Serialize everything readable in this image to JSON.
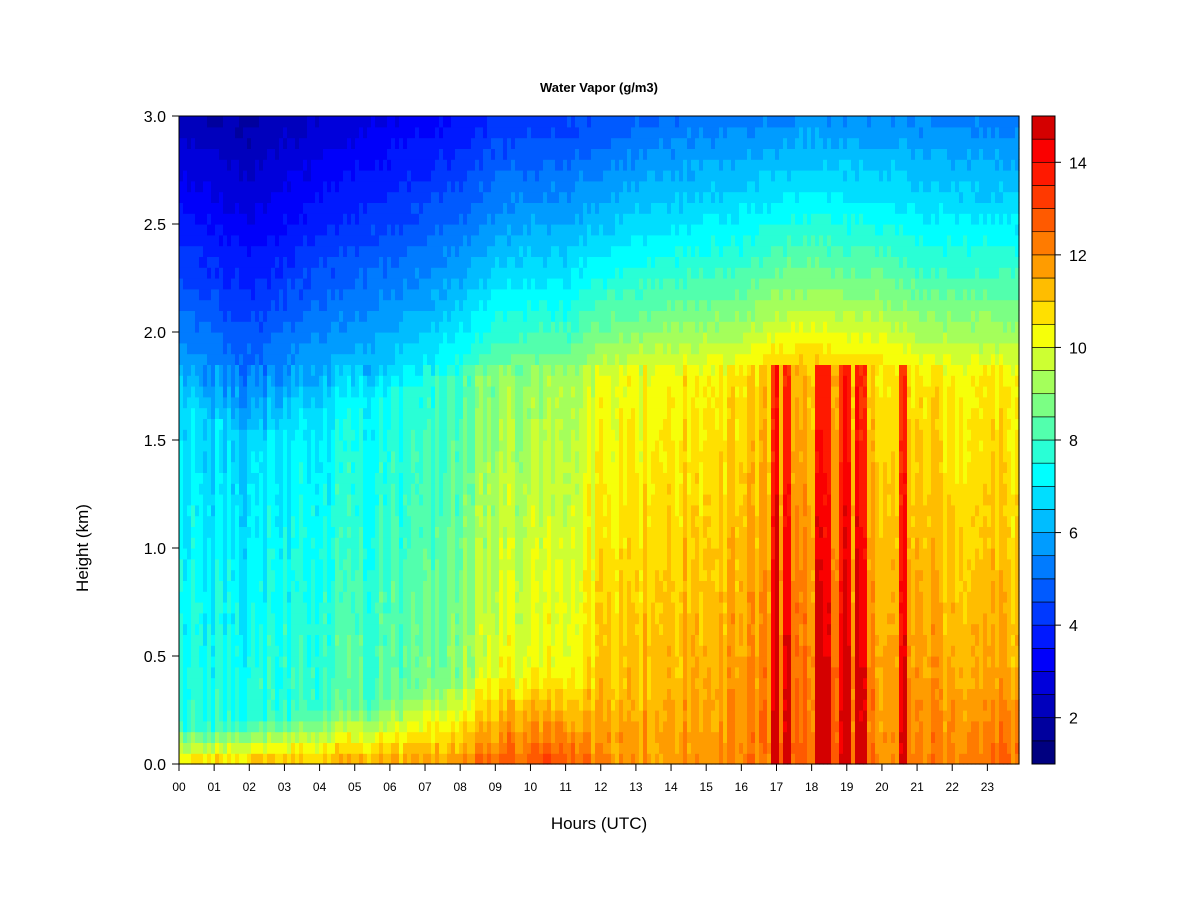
{
  "chart_data": {
    "type": "heatmap",
    "title": "Water Vapor (g/m3)",
    "xlabel": "Hours (UTC)",
    "ylabel": "Height (km)",
    "x_ticks": [
      "00",
      "01",
      "02",
      "03",
      "04",
      "05",
      "06",
      "07",
      "08",
      "09",
      "10",
      "11",
      "12",
      "13",
      "14",
      "15",
      "16",
      "17",
      "18",
      "19",
      "20",
      "21",
      "22",
      "23"
    ],
    "y_ticks": [
      "0.0",
      "0.5",
      "1.0",
      "1.5",
      "2.0",
      "2.5",
      "3.0"
    ],
    "xlim": [
      0,
      23.9
    ],
    "ylim": [
      0,
      3.0
    ],
    "colorbar": {
      "min": 1,
      "max": 15,
      "step": 0.5,
      "tick_values": [
        2,
        4,
        6,
        8,
        10,
        12,
        14
      ],
      "tick_labels": [
        "2",
        "4",
        "6",
        "8",
        "10",
        "12",
        "14"
      ],
      "colors": [
        "#000080",
        "#00009e",
        "#0000bd",
        "#0000db",
        "#0000fa",
        "#0019ff",
        "#0039ff",
        "#005aff",
        "#007bff",
        "#009cff",
        "#00bdff",
        "#00deff",
        "#00ffff",
        "#29ffd6",
        "#52ffad",
        "#7bff84",
        "#a4ff5b",
        "#cdff32",
        "#f6ff09",
        "#ffe000",
        "#ffbd00",
        "#ff9c00",
        "#ff7b00",
        "#ff5a00",
        "#ff3900",
        "#ff1900",
        "#fa0000",
        "#d40000"
      ]
    },
    "grid": false,
    "field_profile": {
      "hours": [
        0,
        2,
        4,
        6,
        8,
        9,
        10,
        11,
        12,
        13,
        14,
        16,
        17,
        18,
        19,
        20,
        21,
        22,
        23.9
      ],
      "surface": [
        10.8,
        11.2,
        11.4,
        11.6,
        12.0,
        12.6,
        13.0,
        12.8,
        12.0,
        11.8,
        11.8,
        12.0,
        12.4,
        12.5,
        12.4,
        12.2,
        12.1,
        12.2,
        12.5
      ],
      "bl_top_km": [
        0.18,
        0.2,
        0.25,
        0.3,
        0.4,
        0.45,
        0.45,
        0.42,
        0.4,
        0.4,
        0.42,
        0.5,
        0.55,
        0.55,
        0.55,
        0.55,
        0.5,
        0.5,
        0.5
      ],
      "mid": [
        7.2,
        7.0,
        7.5,
        7.8,
        8.5,
        9.4,
        9.6,
        9.5,
        10.4,
        10.6,
        10.8,
        11.0,
        11.5,
        11.6,
        11.4,
        11.2,
        11.0,
        10.9,
        10.8
      ],
      "mid_top_km": [
        1.7,
        1.5,
        1.6,
        1.7,
        1.8,
        1.8,
        1.8,
        1.8,
        1.8,
        1.8,
        1.8,
        1.8,
        1.85,
        1.85,
        1.85,
        1.85,
        1.8,
        1.8,
        1.8
      ],
      "top": [
        2.2,
        1.8,
        2.5,
        3.0,
        3.5,
        4.0,
        4.2,
        4.3,
        4.5,
        4.8,
        5.0,
        5.3,
        5.4,
        5.6,
        5.5,
        5.6,
        5.4,
        5.3,
        5.2
      ],
      "peak_columns_hours": [
        16.9,
        17.05,
        17.3,
        18.2,
        18.35,
        18.5,
        18.9,
        19.05,
        19.35,
        19.5,
        20.6
      ]
    }
  }
}
